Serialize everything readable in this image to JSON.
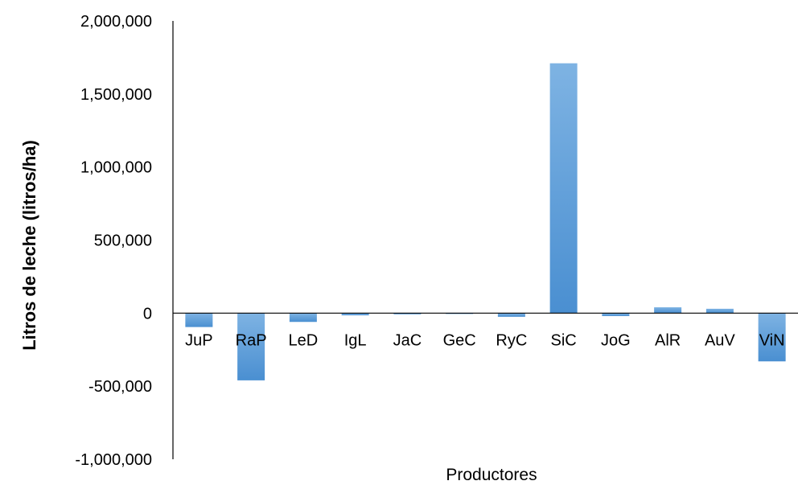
{
  "chart_data": {
    "type": "bar",
    "categories": [
      "JuP",
      "RaP",
      "LeD",
      "IgL",
      "JaC",
      "GeC",
      "RyC",
      "SiC",
      "JoG",
      "AlR",
      "AuV",
      "ViN"
    ],
    "values": [
      -95000,
      -460000,
      -60000,
      -15000,
      -8000,
      -2000,
      -25000,
      1710000,
      -20000,
      40000,
      30000,
      -330000
    ],
    "xlabel": "Productores",
    "ylabel": "Litros de leche (litros/ha)",
    "ylim": [
      -1000000,
      2000000
    ],
    "yticks": [
      {
        "value": 2000000,
        "label": "2,000,000"
      },
      {
        "value": 1500000,
        "label": "1,500,000"
      },
      {
        "value": 1000000,
        "label": "1,000,000"
      },
      {
        "value": 500000,
        "label": "500,000"
      },
      {
        "value": 0,
        "label": "0"
      },
      {
        "value": -500000,
        "label": "-500,000"
      },
      {
        "value": -1000000,
        "label": "-1,000,000"
      }
    ],
    "grid": false,
    "legend": "none",
    "colors": {
      "bar": "#4a8fd1",
      "bar_light": "#7eb3e3",
      "axis": "#000000"
    }
  }
}
